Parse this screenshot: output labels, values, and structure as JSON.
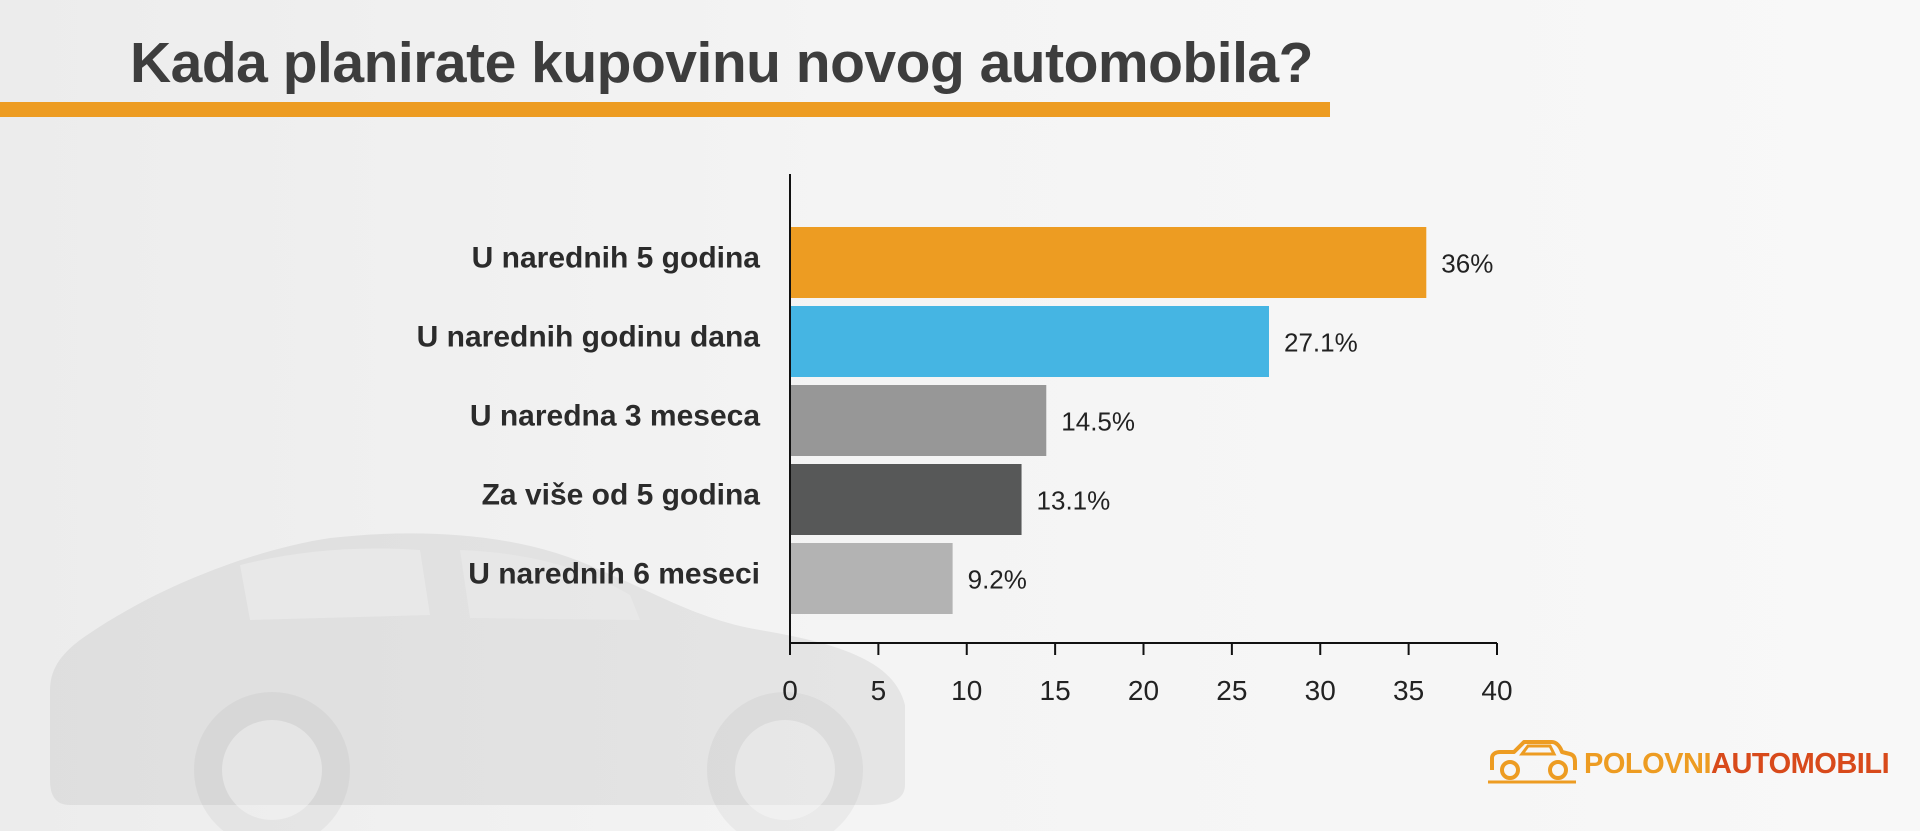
{
  "title": "Kada planirate kupovinu novog automobila?",
  "brand": {
    "part1": "POLOVNI",
    "part2": "AUTOMOBILI",
    "icon": "car-logo-icon"
  },
  "colors": {
    "accent": "#ed9c22",
    "brand_red": "#d84a1b",
    "text": "#3d3d3d"
  },
  "chart_data": {
    "type": "bar",
    "orientation": "horizontal",
    "title": "Kada planirate kupovinu novog automobila?",
    "categories": [
      "U narednih 5 godina",
      "U narednih godinu dana",
      "U naredna 3 meseca",
      "Za više od 5 godina",
      "U narednih 6 meseci"
    ],
    "values": [
      36,
      27.1,
      14.5,
      13.1,
      9.2
    ],
    "value_labels": [
      "36%",
      "27.1%",
      "14.5%",
      "13.1%",
      "9.2%"
    ],
    "bar_colors": [
      "#ed9c22",
      "#45b5e3",
      "#979797",
      "#575858",
      "#b3b3b3"
    ],
    "xlim": [
      0,
      40
    ],
    "xticks": [
      0,
      5,
      10,
      15,
      20,
      25,
      30,
      35,
      40
    ],
    "xtick_labels": [
      "0",
      "5",
      "10",
      "15",
      "20",
      "25",
      "30",
      "35",
      "40"
    ],
    "xlabel": "",
    "ylabel": "",
    "grid": false,
    "legend": "none"
  }
}
